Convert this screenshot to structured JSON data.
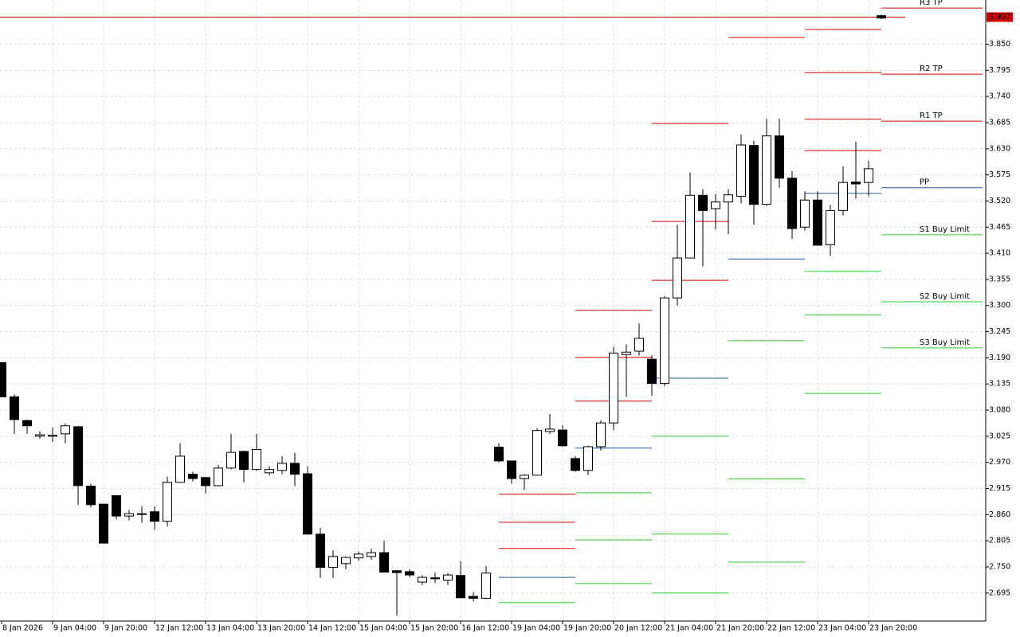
{
  "chart_data": {
    "type": "candlestick",
    "categories": [
      "8 Jan 2026",
      null,
      null,
      null,
      "9 Jan 04:00",
      null,
      null,
      null,
      "9 Jan 20:00",
      null,
      null,
      null,
      "12 Jan 12:00",
      null,
      null,
      null,
      "13 Jan 04:00",
      null,
      null,
      null,
      "13 Jan 20:00",
      null,
      null,
      null,
      "14 Jan 12:00",
      null,
      null,
      null,
      "15 Jan 04:00",
      null,
      null,
      null,
      "15 Jan 20:00",
      null,
      null,
      null,
      "16 Jan 12:00",
      null,
      null,
      null,
      "19 Jan 04:00",
      null,
      null,
      null,
      "19 Jan 20:00",
      null,
      null,
      null,
      "20 Jan 12:00",
      null,
      null,
      null,
      "21 Jan 04:00",
      null,
      null,
      null,
      "21 Jan 20:00",
      null,
      null,
      null,
      "22 Jan 12:00",
      null,
      null,
      null,
      "23 Jan 04:00",
      null,
      null,
      null,
      "23 Jan 20:00",
      null
    ],
    "open": [
      3.18,
      3.108,
      3.058,
      3.025,
      3.025,
      3.03,
      3.045,
      2.92,
      2.882,
      2.9,
      2.857,
      2.862,
      2.866,
      2.846,
      2.928,
      2.945,
      2.938,
      2.921,
      2.958,
      2.993,
      2.955,
      2.948,
      2.953,
      2.968,
      2.946,
      2.819,
      2.749,
      2.757,
      2.769,
      2.772,
      2.78,
      2.742,
      2.74,
      2.718,
      2.727,
      2.722,
      2.732,
      2.688,
      2.684,
      3.002,
      2.973,
      2.936,
      2.943,
      3.035,
      3.038,
      2.978,
      2.953,
      3.003,
      3.053,
      3.197,
      3.204,
      3.187,
      3.136,
      3.316,
      3.4,
      3.532,
      3.504,
      3.518,
      3.53,
      3.637,
      3.513,
      3.657,
      3.568,
      3.465,
      3.522,
      3.428,
      3.5,
      3.56,
      3.559,
      3.91
    ],
    "high": [
      3.18,
      3.113,
      3.06,
      3.035,
      3.043,
      3.052,
      3.047,
      2.925,
      2.883,
      2.9,
      2.87,
      2.878,
      2.878,
      2.94,
      3.01,
      2.95,
      2.94,
      2.965,
      3.03,
      2.995,
      3.03,
      2.962,
      2.983,
      2.99,
      2.962,
      2.832,
      2.785,
      2.772,
      2.782,
      2.788,
      2.805,
      2.742,
      2.745,
      2.732,
      2.738,
      2.737,
      2.762,
      2.697,
      2.752,
      3.01,
      2.973,
      2.945,
      3.042,
      3.072,
      3.048,
      2.983,
      3.005,
      3.058,
      3.213,
      3.218,
      3.262,
      3.195,
      3.32,
      3.47,
      3.58,
      3.545,
      3.535,
      3.545,
      3.66,
      3.647,
      3.693,
      3.693,
      3.583,
      3.54,
      3.54,
      3.512,
      3.593,
      3.645,
      3.605,
      3.912
    ],
    "low": [
      3.108,
      3.03,
      3.03,
      3.02,
      3.013,
      3.01,
      2.88,
      2.875,
      2.8,
      2.85,
      2.848,
      2.843,
      2.828,
      2.835,
      2.928,
      2.93,
      2.905,
      2.921,
      2.955,
      2.928,
      2.952,
      2.942,
      2.945,
      2.92,
      2.819,
      2.727,
      2.727,
      2.745,
      2.763,
      2.765,
      2.739,
      2.648,
      2.728,
      2.712,
      2.716,
      2.712,
      2.685,
      2.677,
      2.682,
      2.97,
      2.925,
      2.912,
      2.943,
      3.03,
      3.003,
      2.95,
      2.943,
      2.995,
      3.038,
      3.108,
      3.195,
      3.11,
      3.13,
      3.3,
      3.4,
      3.382,
      3.46,
      3.45,
      3.515,
      3.47,
      3.51,
      3.548,
      3.44,
      3.458,
      3.427,
      3.405,
      3.49,
      3.525,
      3.53,
      3.903
    ],
    "close": [
      3.108,
      3.06,
      3.047,
      3.028,
      3.027,
      3.047,
      2.921,
      2.881,
      2.8,
      2.857,
      2.862,
      2.862,
      2.846,
      2.928,
      2.983,
      2.936,
      2.921,
      2.958,
      2.991,
      2.955,
      2.997,
      2.955,
      2.968,
      2.945,
      2.819,
      2.749,
      2.772,
      2.77,
      2.777,
      2.78,
      2.739,
      2.738,
      2.733,
      2.728,
      2.725,
      2.733,
      2.685,
      2.684,
      2.737,
      2.973,
      2.936,
      2.943,
      3.037,
      3.04,
      3.005,
      2.953,
      3.003,
      3.053,
      3.2,
      3.202,
      3.231,
      3.136,
      3.316,
      3.4,
      3.532,
      3.5,
      3.518,
      3.533,
      3.638,
      3.513,
      3.657,
      3.568,
      3.462,
      3.522,
      3.427,
      3.5,
      3.559,
      3.556,
      3.588,
      3.905
    ],
    "up_color": "#ffffff",
    "down_color": "#000000",
    "ylim": [
      2.636,
      3.943
    ],
    "yticks": [
      2.695,
      {
        "value": 2.75,
        "label": "2.750"
      },
      2.805,
      {
        "value": 2.86,
        "label": "2.860"
      },
      2.915,
      {
        "value": 2.97,
        "label": "2.970"
      },
      3.025,
      {
        "value": 3.08,
        "label": "3.080"
      },
      3.135,
      {
        "value": 3.19,
        "label": "3.190"
      },
      3.245,
      {
        "value": 3.3,
        "label": "3.300"
      },
      3.355,
      {
        "value": 3.41,
        "label": "3.410"
      },
      3.465,
      {
        "value": 3.52,
        "label": "3.520"
      },
      3.575,
      {
        "value": 3.63,
        "label": "3.630"
      },
      3.685,
      {
        "value": 3.74,
        "label": "3.740"
      },
      3.795,
      {
        "value": 3.85,
        "label": "3.850"
      }
    ],
    "grid": true,
    "current_price": {
      "value": 3.907,
      "label": "3.907",
      "color": "#cc0000"
    },
    "pivot_days": [
      [
        {
          "value": 2.903,
          "color": "#dd0000"
        },
        {
          "value": 2.844,
          "color": "#dd0000"
        },
        {
          "value": 2.789,
          "color": "#dd0000"
        },
        {
          "value": 2.728,
          "color": "#1e5aa8"
        },
        {
          "value": 2.675,
          "color": "#33cc33"
        }
      ],
      [
        {
          "value": 3.29,
          "color": "#dd0000"
        },
        {
          "value": 3.191,
          "color": "#dd0000"
        },
        {
          "value": 3.099,
          "color": "#dd0000"
        },
        {
          "value": 3.0,
          "color": "#1e5aa8"
        },
        {
          "value": 2.906,
          "color": "#33cc33"
        },
        {
          "value": 2.807,
          "color": "#33cc33"
        },
        {
          "value": 2.715,
          "color": "#33cc33"
        }
      ],
      [
        {
          "value": 3.683,
          "color": "#dd0000"
        },
        {
          "value": 3.477,
          "color": "#dd0000"
        },
        {
          "value": 3.353,
          "color": "#dd0000"
        },
        {
          "value": 3.147,
          "color": "#1e5aa8"
        },
        {
          "value": 3.025,
          "color": "#33cc33"
        },
        {
          "value": 2.819,
          "color": "#33cc33"
        },
        {
          "value": 2.695,
          "color": "#33cc33"
        }
      ],
      [
        {
          "value": 3.864,
          "color": "#dd0000"
        },
        {
          "value": 3.398,
          "color": "#1e5aa8"
        },
        {
          "value": 3.226,
          "color": "#33cc33"
        },
        {
          "value": 2.935,
          "color": "#33cc33"
        },
        {
          "value": 2.76,
          "color": "#33cc33"
        }
      ],
      [
        {
          "value": 3.881,
          "color": "#dd0000"
        },
        {
          "value": 3.79,
          "color": "#dd0000"
        },
        {
          "value": 3.692,
          "color": "#dd0000"
        },
        {
          "value": 3.626,
          "color": "#dd0000"
        },
        {
          "value": 3.536,
          "color": "#1e5aa8"
        },
        {
          "value": 3.372,
          "color": "#33cc33"
        },
        {
          "value": 3.28,
          "color": "#33cc33"
        },
        {
          "value": 3.115,
          "color": "#33cc33"
        }
      ],
      [
        {
          "name": "R3 TP",
          "value": 3.926,
          "color": "#dd0000"
        },
        {
          "name": "R2 TP",
          "value": 3.787,
          "color": "#dd0000"
        },
        {
          "name": "R1 TP",
          "value": 3.688,
          "color": "#dd0000"
        },
        {
          "name": "PP",
          "value": 3.548,
          "color": "#1e5aa8"
        },
        {
          "name": "S1 Buy Limit",
          "value": 3.449,
          "color": "#33cc33"
        },
        {
          "name": "S2 Buy Limit",
          "value": 3.308,
          "color": "#33cc33"
        },
        {
          "name": "S3 Buy Limit",
          "value": 3.211,
          "color": "#33cc33"
        }
      ]
    ]
  }
}
